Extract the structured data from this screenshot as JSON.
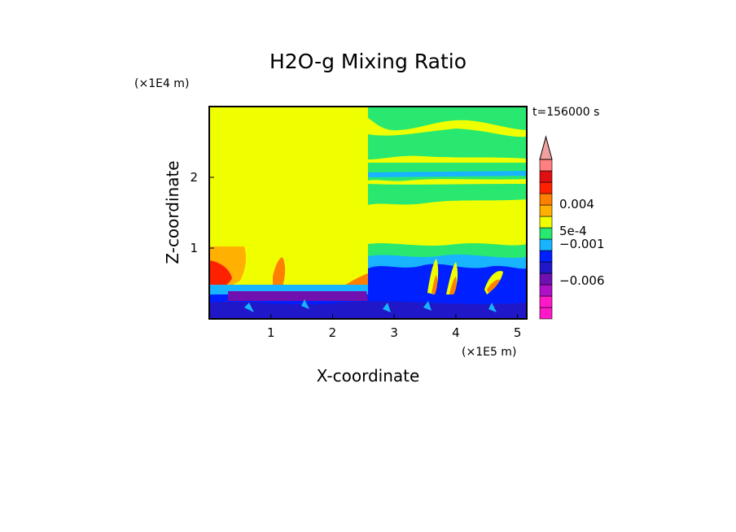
{
  "chart_data": {
    "type": "heatmap",
    "title": "H2O-g Mixing Ratio",
    "xlabel": "X-coordinate",
    "ylabel": "Z-coordinate",
    "x_unit": "(×1E5 m)",
    "y_unit": "(×1E4 m)",
    "time_label": "t=156000 s",
    "xlim": [
      0,
      5.15
    ],
    "ylim": [
      0,
      3.0
    ],
    "x_ticks": [
      {
        "value": 1,
        "label": "1"
      },
      {
        "value": 2,
        "label": "2"
      },
      {
        "value": 3,
        "label": "3"
      },
      {
        "value": 4,
        "label": "4"
      },
      {
        "value": 5,
        "label": "5"
      }
    ],
    "y_ticks": [
      {
        "value": 1,
        "label": "1"
      },
      {
        "value": 2,
        "label": "2"
      }
    ],
    "colorbar": {
      "levels": [
        {
          "color": "#ff18c8"
        },
        {
          "color": "#ff18c8"
        },
        {
          "color": "#b010c8"
        },
        {
          "color": "#7010b0"
        },
        {
          "color": "#2018c8"
        },
        {
          "color": "#0020ff"
        },
        {
          "color": "#18b4ff"
        },
        {
          "color": "#28e870"
        },
        {
          "color": "#f0ff00"
        },
        {
          "color": "#ffb000"
        },
        {
          "color": "#ff8000"
        },
        {
          "color": "#ff2000"
        },
        {
          "color": "#e01010"
        },
        {
          "color": "#ff8080"
        }
      ],
      "arrow_color": "#f0a0a0",
      "labels": [
        {
          "text": "0.004",
          "position": 0.72
        },
        {
          "text": "5e-4",
          "position": 0.55
        },
        {
          "text": "−0.001",
          "position": 0.47
        },
        {
          "text": "−0.006",
          "position": 0.24
        }
      ]
    },
    "regions": [
      {
        "name": "background",
        "value": "~0",
        "color": "#f0ff00"
      },
      {
        "name": "upper-right-layers",
        "color": "#28e870"
      },
      {
        "name": "near-surface-negative",
        "color": "#0020ff"
      },
      {
        "name": "surface-strong-negative",
        "color": "#7010b0"
      },
      {
        "name": "low-level-positive",
        "color": "#ff2000"
      }
    ]
  }
}
